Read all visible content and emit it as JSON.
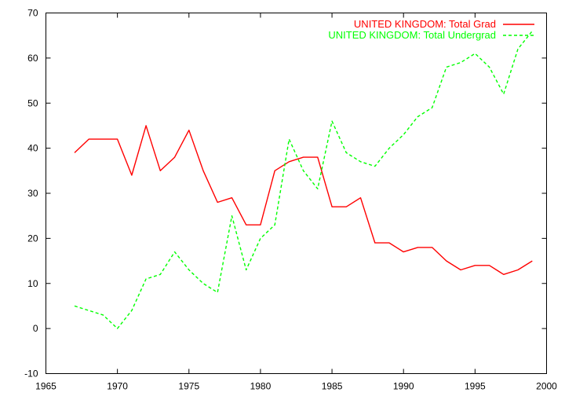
{
  "chart_data": {
    "type": "line",
    "title": "",
    "xlabel": "",
    "ylabel": "",
    "xlim": [
      1965,
      2000
    ],
    "ylim": [
      -10,
      70
    ],
    "xticks": [
      1965,
      1970,
      1975,
      1980,
      1985,
      1990,
      1995,
      2000
    ],
    "yticks": [
      -10,
      0,
      10,
      20,
      30,
      40,
      50,
      60,
      70
    ],
    "grid": false,
    "legend_position": "top-right",
    "x": [
      1967,
      1968,
      1969,
      1970,
      1971,
      1972,
      1973,
      1974,
      1975,
      1976,
      1977,
      1978,
      1979,
      1980,
      1981,
      1982,
      1983,
      1984,
      1985,
      1986,
      1987,
      1988,
      1989,
      1990,
      1991,
      1992,
      1993,
      1994,
      1995,
      1996,
      1997,
      1998,
      1999
    ],
    "series": [
      {
        "name": "UNITED KINGDOM: Total Grad",
        "color": "#ff0000",
        "style": "solid",
        "values": [
          39,
          42,
          42,
          42,
          34,
          45,
          35,
          38,
          44,
          35,
          28,
          29,
          23,
          23,
          35,
          37,
          38,
          38,
          27,
          27,
          29,
          19,
          19,
          17,
          18,
          18,
          15,
          13,
          14,
          14,
          12,
          13,
          15
        ]
      },
      {
        "name": "UNITED KINGDOM: Total Undergrad",
        "color": "#00ff00",
        "style": "dashed",
        "values": [
          5,
          4,
          3,
          0,
          4,
          11,
          12,
          17,
          13,
          10,
          8,
          25,
          13,
          20,
          23,
          42,
          35,
          31,
          46,
          39,
          37,
          36,
          40,
          43,
          47,
          49,
          58,
          59,
          61,
          58,
          52,
          62,
          66
        ]
      }
    ]
  }
}
